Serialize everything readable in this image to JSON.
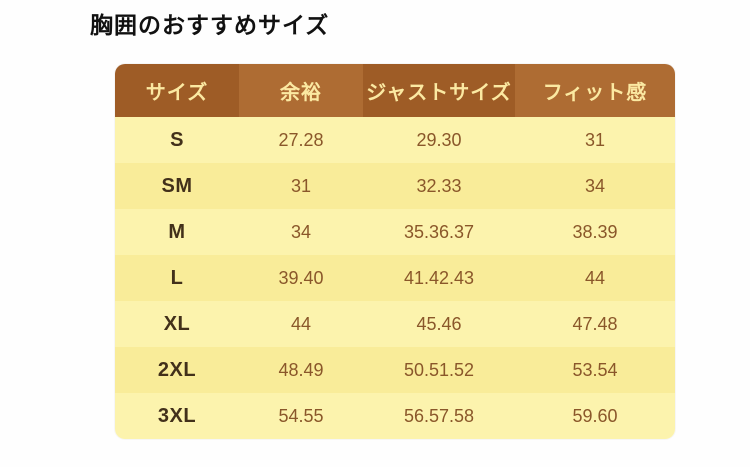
{
  "page": {
    "title": "胸囲のおすすめサイズ"
  },
  "colors": {
    "header_bg_dark": "#9e5c26",
    "header_bg_light": "#ae6c33",
    "header_text": "#fbe9a2",
    "body_bg_odd": "#fcf3ad",
    "body_bg_even": "#f9ec99",
    "value_text": "#8a572a",
    "size_label_text": "#42301a",
    "title_text": "#111111"
  },
  "chart_data": {
    "type": "table",
    "title": "胸囲のおすすめサイズ",
    "columns": [
      "サイズ",
      "余裕",
      "ジャストサイズ",
      "フィット感"
    ],
    "rows": [
      [
        "S",
        "27.28",
        "29.30",
        "31"
      ],
      [
        "SM",
        "31",
        "32.33",
        "34"
      ],
      [
        "M",
        "34",
        "35.36.37",
        "38.39"
      ],
      [
        "L",
        "39.40",
        "41.42.43",
        "44"
      ],
      [
        "XL",
        "44",
        "45.46",
        "47.48"
      ],
      [
        "2XL",
        "48.49",
        "50.51.52",
        "53.54"
      ],
      [
        "3XL",
        "54.55",
        "56.57.58",
        "59.60"
      ]
    ]
  }
}
